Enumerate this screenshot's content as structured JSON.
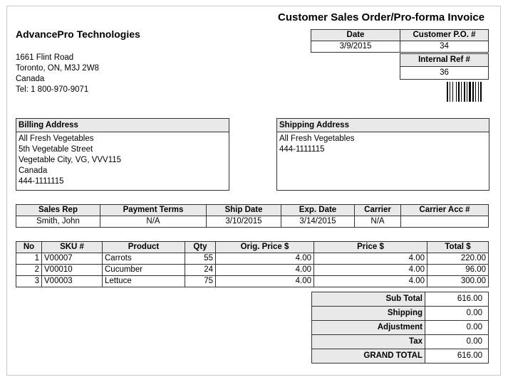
{
  "document": {
    "title": "Customer Sales Order/Pro-forma Invoice"
  },
  "company": {
    "name": "AdvancePro Technologies",
    "address_lines": [
      "1661 Flint Road",
      "Toronto, ON, M3J 2W8",
      "Canada",
      "Tel: 1 800-970-9071"
    ]
  },
  "order_info": {
    "date_label": "Date",
    "date_value": "3/9/2015",
    "po_label": "Customer P.O. #",
    "po_value": "34",
    "ref_label": "Internal Ref #",
    "ref_value": "36"
  },
  "billing": {
    "label": "Billing Address",
    "lines": [
      "All Fresh Vegetables",
      "5th Vegetable Street",
      "Vegetable City, VG, VVV115",
      "Canada",
      "444-1111115"
    ]
  },
  "shipping": {
    "label": "Shipping Address",
    "lines": [
      "All Fresh Vegetables",
      "444-1111115"
    ]
  },
  "terms": {
    "headers": [
      "Sales Rep",
      "Payment Terms",
      "Ship Date",
      "Exp. Date",
      "Carrier",
      "Carrier Acc #"
    ],
    "values": [
      "Smith, John",
      "N/A",
      "3/10/2015",
      "3/14/2015",
      "N/A",
      ""
    ]
  },
  "items": {
    "headers": [
      "No",
      "SKU #",
      "Product",
      "Qty",
      "Orig. Price $",
      "Price $",
      "Total $"
    ],
    "rows": [
      [
        "1",
        "V00007",
        "Carrots",
        "55",
        "4.00",
        "4.00",
        "220.00"
      ],
      [
        "2",
        "V00010",
        "Cucumber",
        "24",
        "4.00",
        "4.00",
        "96.00"
      ],
      [
        "3",
        "V00003",
        "Lettuce",
        "75",
        "4.00",
        "4.00",
        "300.00"
      ]
    ]
  },
  "totals": [
    {
      "label": "Sub Total",
      "value": "616.00"
    },
    {
      "label": "Shipping",
      "value": "0.00"
    },
    {
      "label": "Adjustment",
      "value": "0.00"
    },
    {
      "label": "Tax",
      "value": "0.00"
    },
    {
      "label": "GRAND TOTAL",
      "value": "616.00"
    }
  ]
}
